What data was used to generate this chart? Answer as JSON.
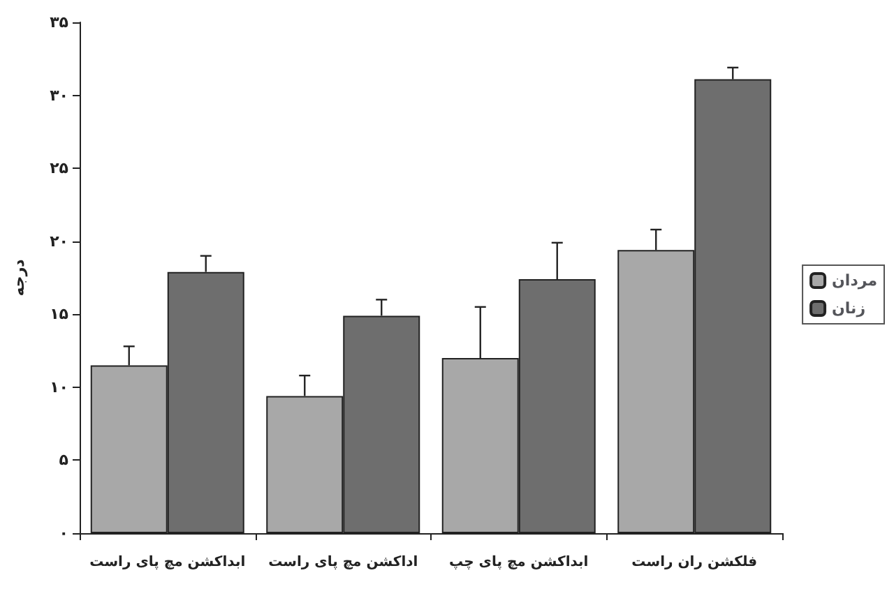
{
  "chart_data": {
    "type": "bar",
    "ylabel": "درجه",
    "categories": [
      "ابداکشن مچ پای راست",
      "اداکشن مچ پای راست",
      "ابداکشن مچ پای چپ",
      "فلکشن ران راست"
    ],
    "series": [
      {
        "name": "مردان",
        "color": "#a8a8a8",
        "values": [
          11.5,
          9.4,
          12.0,
          19.4
        ],
        "errors": [
          [
            11.5,
            12.8
          ],
          [
            9.4,
            10.8
          ],
          [
            12.0,
            15.5
          ],
          [
            19.4,
            20.8
          ]
        ]
      },
      {
        "name": "زنان",
        "color": "#6e6e6e",
        "values": [
          17.9,
          14.9,
          17.4,
          31.1
        ],
        "errors": [
          [
            17.9,
            19.0
          ],
          [
            14.9,
            16.0
          ],
          [
            17.4,
            19.9
          ],
          [
            31.1,
            31.9
          ]
        ]
      }
    ],
    "ylim": [
      0,
      35
    ],
    "yticks": [
      {
        "value": 0,
        "label": "۰"
      },
      {
        "value": 5,
        "label": "۵"
      },
      {
        "value": 10,
        "label": "۱۰"
      },
      {
        "value": 15,
        "label": "۱۵"
      },
      {
        "value": 20,
        "label": "۲۰"
      },
      {
        "value": 25,
        "label": "۲۵"
      },
      {
        "value": 30,
        "label": "۳۰"
      },
      {
        "value": 35,
        "label": "۳۵"
      }
    ],
    "grid": false,
    "legend": "right"
  }
}
